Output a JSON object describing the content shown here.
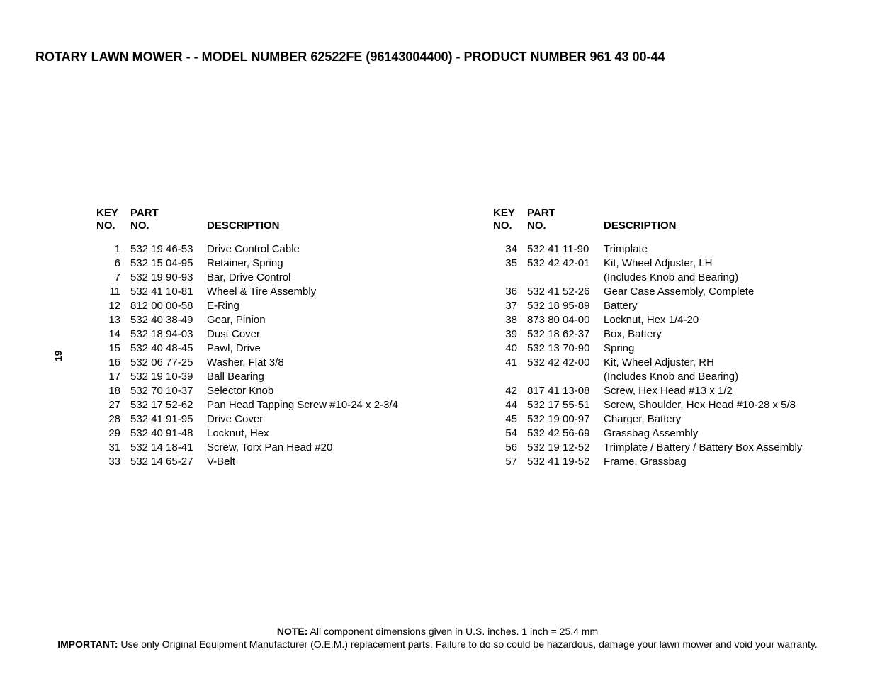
{
  "title": {
    "prefix": "ROTARY LAWN MOWER - - MODEL NUMBER  ",
    "model": "62522FE",
    "suffix": "  (96143004400) - PRODUCT NUMBER 961 43 00-44"
  },
  "page_number": "19",
  "headers": {
    "key_line1": "KEY",
    "key_line2": "NO.",
    "part_line1": "PART",
    "part_line2": "NO.",
    "description": "DESCRIPTION"
  },
  "left": [
    {
      "key": "1",
      "part": "532 19 46-53",
      "desc": "Drive Control Cable"
    },
    {
      "key": "6",
      "part": "532 15 04-95",
      "desc": "Retainer, Spring"
    },
    {
      "key": "7",
      "part": "532 19 90-93",
      "desc": "Bar, Drive Control"
    },
    {
      "key": "11",
      "part": "532 41 10-81",
      "desc": "Wheel & Tire Assembly"
    },
    {
      "key": "12",
      "part": "812 00 00-58",
      "desc": "E-Ring"
    },
    {
      "key": "13",
      "part": "532 40 38-49",
      "desc": "Gear, Pinion"
    },
    {
      "key": "14",
      "part": "532 18 94-03",
      "desc": "Dust Cover"
    },
    {
      "key": "15",
      "part": "532 40 48-45",
      "desc": "Pawl, Drive"
    },
    {
      "key": "16",
      "part": "532 06 77-25",
      "desc": "Washer, Flat  3/8"
    },
    {
      "key": "17",
      "part": "532 19 10-39",
      "desc": "Ball Bearing"
    },
    {
      "key": "18",
      "part": "532 70 10-37",
      "desc": "Selector Knob"
    },
    {
      "key": "27",
      "part": "532 17 52-62",
      "desc": "Pan Head Tapping Screw #10-24 x 2-3/4"
    },
    {
      "key": "28",
      "part": "532 41 91-95",
      "desc": "Drive Cover"
    },
    {
      "key": "29",
      "part": "532 40 91-48",
      "desc": "Locknut, Hex"
    },
    {
      "key": "31",
      "part": "532 14 18-41",
      "desc": "Screw, Torx Pan Head  #20"
    },
    {
      "key": "33",
      "part": "532 14 65-27",
      "desc": "V-Belt"
    }
  ],
  "right": [
    {
      "key": "34",
      "part": "532 41 11-90",
      "desc": "Trimplate"
    },
    {
      "key": "35",
      "part": "532 42 42-01",
      "desc": "Kit, Wheel Adjuster, LH"
    },
    {
      "key": "",
      "part": "",
      "desc": "(Includes Knob and Bearing)"
    },
    {
      "key": "36",
      "part": "532 41 52-26",
      "desc": "Gear Case Assembly, Complete"
    },
    {
      "key": "37",
      "part": "532 18 95-89",
      "desc": "Battery"
    },
    {
      "key": "38",
      "part": "873 80 04-00",
      "desc": "Locknut, Hex  1/4-20"
    },
    {
      "key": "39",
      "part": "532 18 62-37",
      "desc": "Box, Battery"
    },
    {
      "key": "40",
      "part": "532 13 70-90",
      "desc": "Spring"
    },
    {
      "key": "41",
      "part": "532 42 42-00",
      "desc": "Kit, Wheel Adjuster, RH"
    },
    {
      "key": "",
      "part": "",
      "desc": "(Includes Knob and Bearing)"
    },
    {
      "key": "42",
      "part": "817 41 13-08",
      "desc": "Screw, Hex Head  #13 x 1/2"
    },
    {
      "key": "44",
      "part": "532 17 55-51",
      "desc": "Screw, Shoulder, Hex Head  #10-28 x 5/8"
    },
    {
      "key": "45",
      "part": "532 19 00-97",
      "desc": "Charger, Battery"
    },
    {
      "key": "54",
      "part": "532 42 56-69",
      "desc": "Grassbag Assembly"
    },
    {
      "key": "56",
      "part": "532 19 12-52",
      "desc": "Trimplate / Battery / Battery Box Assembly"
    },
    {
      "key": "57",
      "part": "532 41 19-52",
      "desc": "Frame, Grassbag"
    }
  ],
  "footer": {
    "note_label": "NOTE:",
    "note_text": " All component dimensions given in U.S. inches.  1 inch = 25.4 mm",
    "imp_label": "IMPORTANT:",
    "imp_text": " Use only Original Equipment Manufacturer (O.E.M.) replacement parts.  Failure to do so could be hazardous, damage your lawn mower and void your warranty."
  }
}
